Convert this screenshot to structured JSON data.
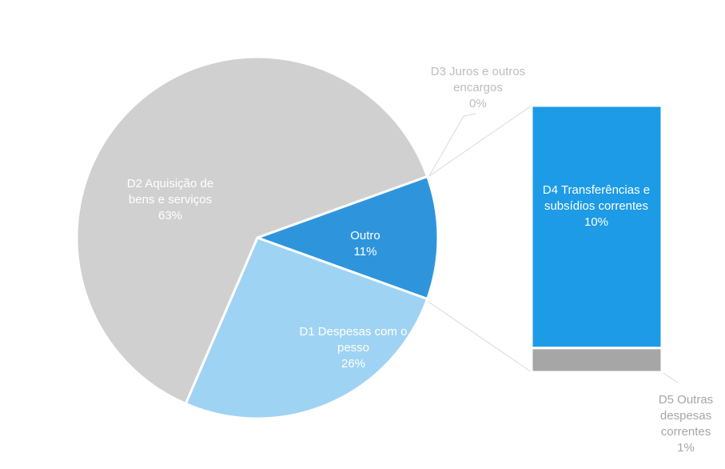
{
  "chart_data": {
    "type": "pie-of-bar",
    "pie": {
      "categories": [
        "Outro",
        "D1 Despesas com o pesso",
        "D2 Aquisição de bens e serviços"
      ],
      "values": [
        11,
        26,
        63
      ],
      "value_labels": [
        "11%",
        "26%",
        "63%"
      ],
      "colors": [
        "#2e95dd",
        "#9fd3f3",
        "#d0d0d0"
      ]
    },
    "bar": {
      "categories": [
        "D5 Outras despesas correntes",
        "D4 Transferências e subsídios correntes",
        "D3 Juros e outros encargos"
      ],
      "values": [
        1,
        10,
        0
      ],
      "value_labels": [
        "1%",
        "10%",
        "0%"
      ],
      "colors": [
        "#a6a6a6",
        "#1e9be6",
        "#7fbfe8"
      ]
    }
  }
}
